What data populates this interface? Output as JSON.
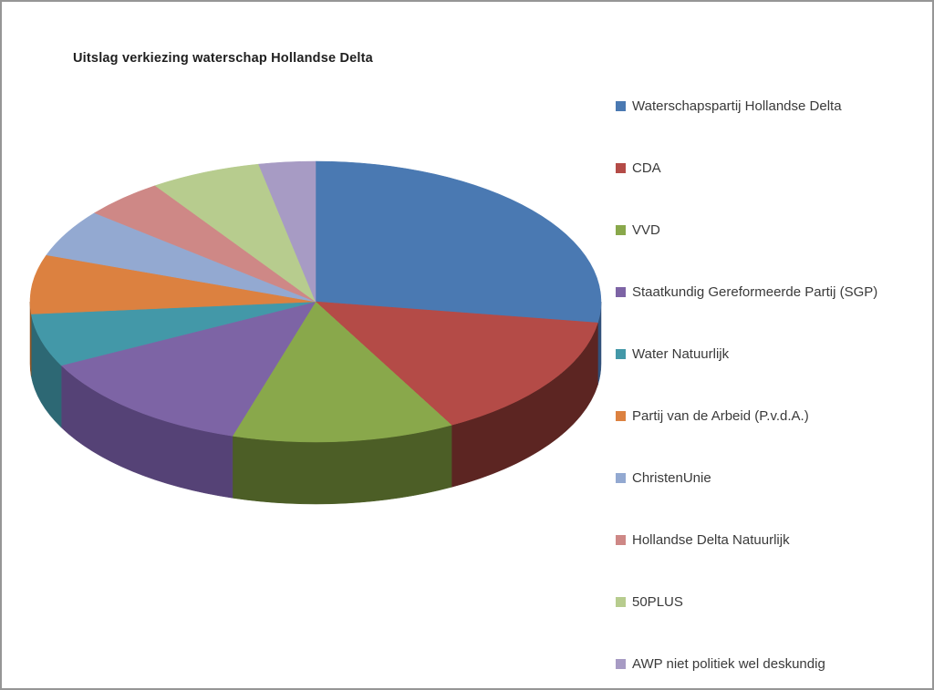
{
  "page": {
    "background": "#FFFFFF",
    "border_color": "#969696"
  },
  "chart_data": {
    "type": "pie",
    "three_d": true,
    "title": "Uitslag verkiezing waterschap Hollandse Delta",
    "legend_position": "right",
    "data_labels": "none",
    "slices": [
      {
        "label": "Waterschapspartij Hollandse Delta",
        "value_percent": 27.4,
        "color": "#4A79B2",
        "side_color": "#31517A"
      },
      {
        "label": "CDA",
        "value_percent": 14.7,
        "color": "#B44B47",
        "side_color": "#5C2522"
      },
      {
        "label": "VVD",
        "value_percent": 12.6,
        "color": "#89A84B",
        "side_color": "#4C5E26"
      },
      {
        "label": "Staatkundig Gereformeerde Partij (SGP)",
        "value_percent": 12.8,
        "color": "#7D64A5",
        "side_color": "#554276"
      },
      {
        "label": "Water Natuurlijk",
        "value_percent": 6.1,
        "color": "#4398A8",
        "side_color": "#2D6874"
      },
      {
        "label": "Partij van de Arbeid (P.v.d.A.)",
        "value_percent": 6.8,
        "color": "#DC8140",
        "side_color": "#8F5222"
      },
      {
        "label": "ChristenUnie",
        "value_percent": 5.5,
        "color": "#93A9D1",
        "side_color": "#5F7396"
      },
      {
        "label": "Hollandse Delta Natuurlijk",
        "value_percent": 4.6,
        "color": "#CE8886",
        "side_color": "#8E5553"
      },
      {
        "label": "50PLUS",
        "value_percent": 6.3,
        "color": "#B7CC8E",
        "side_color": "#7C8F59"
      },
      {
        "label": "AWP niet politiek wel deskundig",
        "value_percent": 3.2,
        "color": "#A79BC4",
        "side_color": "#6F6389"
      }
    ]
  }
}
